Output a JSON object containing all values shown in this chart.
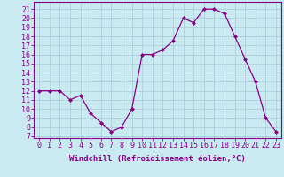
{
  "x": [
    0,
    1,
    2,
    3,
    4,
    5,
    6,
    7,
    8,
    9,
    10,
    11,
    12,
    13,
    14,
    15,
    16,
    17,
    18,
    19,
    20,
    21,
    22,
    23
  ],
  "y": [
    12,
    12,
    12,
    11,
    11.5,
    9.5,
    8.5,
    7.5,
    8,
    10,
    16,
    16,
    16.5,
    17.5,
    20,
    19.5,
    21,
    21,
    20.5,
    18,
    15.5,
    13,
    9,
    7.5
  ],
  "line_color": "#880088",
  "marker": "D",
  "marker_size": 2.0,
  "bg_color": "#c8eaf0",
  "grid_color": "#aac8d8",
  "xlabel": "Windchill (Refroidissement éolien,°C)",
  "ylabel_ticks": [
    7,
    8,
    9,
    10,
    11,
    12,
    13,
    14,
    15,
    16,
    17,
    18,
    19,
    20,
    21
  ],
  "ylim": [
    6.8,
    21.8
  ],
  "xlim": [
    -0.5,
    23.5
  ],
  "xlabel_fontsize": 6.5,
  "tick_fontsize": 6.0,
  "tick_color": "#880088",
  "label_color": "#880088",
  "spine_color": "#880088",
  "linewidth": 0.9
}
